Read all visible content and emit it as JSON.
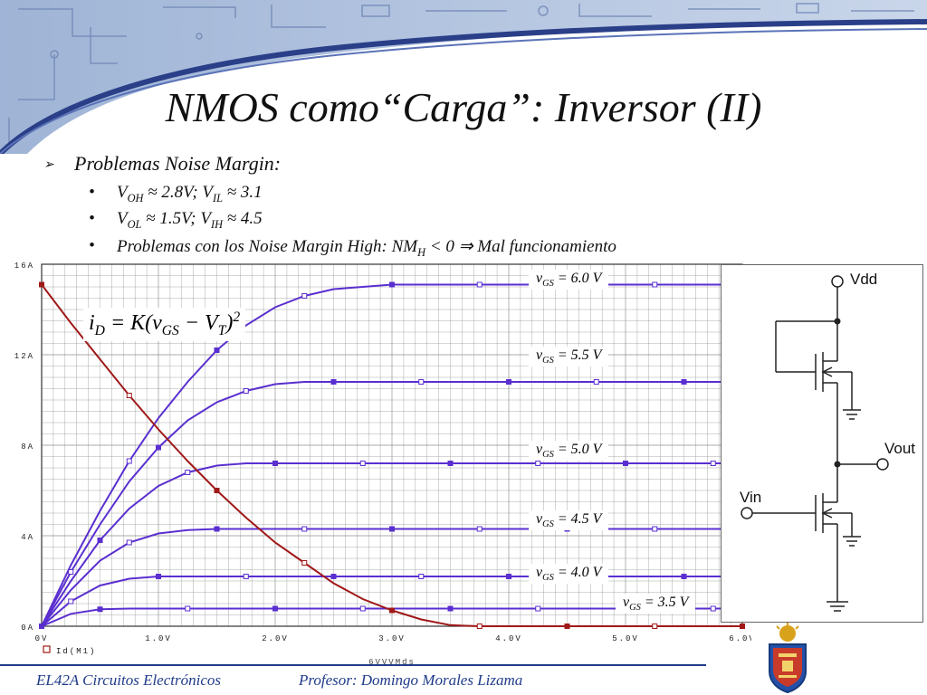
{
  "slide": {
    "title": "NMOS como“Carga”: Inversor (II)",
    "bullet_main": "Problemas Noise Margin:",
    "sub_bullets": [
      {
        "a": "V",
        "a_sub": "OH",
        "a_rest": " ≈ 2.8V;  V",
        "b_sub": "IL",
        "b_rest": " ≈ 3.1"
      },
      {
        "a": "V",
        "a_sub": "OL",
        "a_rest": " ≈ 1.5V;  V",
        "b_sub": "IH",
        "b_rest": " ≈ 4.5"
      },
      {
        "a": "Problemas con los Noise Margin High: NM",
        "a_sub": "H",
        "a_rest": " < 0 ⇒ Mal funcionamiento",
        "b_sub": "",
        "b_rest": ""
      }
    ],
    "equation": {
      "i": "i",
      "i_sub": "D",
      "mid": " = K(v",
      "v_sub": "GS",
      "minus": " − V",
      "t_sub": "T",
      "close": ")",
      "power": "2"
    },
    "curve_labels": [
      {
        "v": "v",
        "sub": "GS",
        "rest": " = 6.0 V"
      },
      {
        "v": "v",
        "sub": "GS",
        "rest": " = 5.5 V"
      },
      {
        "v": "v",
        "sub": "GS",
        "rest": " = 5.0 V"
      },
      {
        "v": "v",
        "sub": "GS",
        "rest": " = 4.5 V"
      },
      {
        "v": "v",
        "sub": "GS",
        "rest": " = 4.0 V"
      },
      {
        "v": "v",
        "sub": "GS",
        "rest": " = 3.5 V"
      }
    ],
    "circuit": {
      "vdd": "Vdd",
      "vout": "Vout",
      "vin": "Vin"
    },
    "footer": {
      "course": "EL42A Circuitos Electrónicos",
      "professor": "Profesor: Domingo Morales Lizama"
    }
  },
  "chart_data": {
    "type": "line",
    "x": [
      0,
      0.25,
      0.5,
      0.75,
      1.0,
      1.25,
      1.5,
      1.75,
      2.0,
      2.25,
      2.5,
      2.75,
      3.0,
      3.25,
      3.5,
      3.75,
      4.0,
      4.25,
      4.5,
      4.75,
      5.0,
      5.25,
      5.5,
      5.75,
      6.0
    ],
    "xticks": [
      "0V",
      "1.0V",
      "2.0V",
      "3.0V",
      "4.0V",
      "5.0V",
      "6.0V"
    ],
    "yticks": [
      "0A",
      "4A",
      "8A",
      "12A",
      "16A"
    ],
    "xlabel": "6VVVMds",
    "legend": "Id(M1)",
    "xlim": [
      0,
      6.0
    ],
    "ylim": [
      0,
      16
    ],
    "series": [
      {
        "name": "vGS = 6.0 V",
        "values": [
          0,
          2.7,
          5.1,
          7.3,
          9.2,
          10.8,
          12.2,
          13.3,
          14.1,
          14.6,
          14.9,
          15.0,
          15.1,
          15.1,
          15.1,
          15.1,
          15.1,
          15.1,
          15.1,
          15.1,
          15.1,
          15.1,
          15.1,
          15.1,
          15.1
        ]
      },
      {
        "name": "vGS = 5.5 V",
        "values": [
          0,
          2.4,
          4.5,
          6.4,
          7.9,
          9.1,
          9.9,
          10.4,
          10.7,
          10.8,
          10.8,
          10.8,
          10.8,
          10.8,
          10.8,
          10.8,
          10.8,
          10.8,
          10.8,
          10.8,
          10.8,
          10.8,
          10.8,
          10.8,
          10.8
        ]
      },
      {
        "name": "vGS = 5.0 V",
        "values": [
          0,
          2.0,
          3.8,
          5.2,
          6.2,
          6.8,
          7.1,
          7.2,
          7.2,
          7.2,
          7.2,
          7.2,
          7.2,
          7.2,
          7.2,
          7.2,
          7.2,
          7.2,
          7.2,
          7.2,
          7.2,
          7.2,
          7.2,
          7.2,
          7.2
        ]
      },
      {
        "name": "vGS = 4.5 V",
        "values": [
          0,
          1.6,
          2.9,
          3.7,
          4.1,
          4.25,
          4.3,
          4.3,
          4.3,
          4.3,
          4.3,
          4.3,
          4.3,
          4.3,
          4.3,
          4.3,
          4.3,
          4.3,
          4.3,
          4.3,
          4.3,
          4.3,
          4.3,
          4.3,
          4.3
        ]
      },
      {
        "name": "vGS = 4.0 V",
        "values": [
          0,
          1.1,
          1.8,
          2.1,
          2.2,
          2.2,
          2.2,
          2.2,
          2.2,
          2.2,
          2.2,
          2.2,
          2.2,
          2.2,
          2.2,
          2.2,
          2.2,
          2.2,
          2.2,
          2.2,
          2.2,
          2.2,
          2.2,
          2.2,
          2.2
        ]
      },
      {
        "name": "vGS = 3.5 V",
        "values": [
          0,
          0.55,
          0.75,
          0.78,
          0.78,
          0.78,
          0.78,
          0.78,
          0.78,
          0.78,
          0.78,
          0.78,
          0.78,
          0.78,
          0.78,
          0.78,
          0.78,
          0.78,
          0.78,
          0.78,
          0.78,
          0.78,
          0.78,
          0.78,
          0.78
        ]
      },
      {
        "name": "load",
        "values": [
          15.1,
          13.4,
          11.8,
          10.2,
          8.7,
          7.3,
          6.0,
          4.8,
          3.7,
          2.8,
          1.9,
          1.2,
          0.7,
          0.3,
          0.05,
          0,
          0,
          0,
          0,
          0,
          0,
          0,
          0,
          0,
          0
        ]
      }
    ],
    "colors": {
      "curves": "#5a2fd0",
      "load": "#a01818",
      "grid": "#888888",
      "title": "#111111",
      "footer": "#1f3b8a"
    }
  }
}
